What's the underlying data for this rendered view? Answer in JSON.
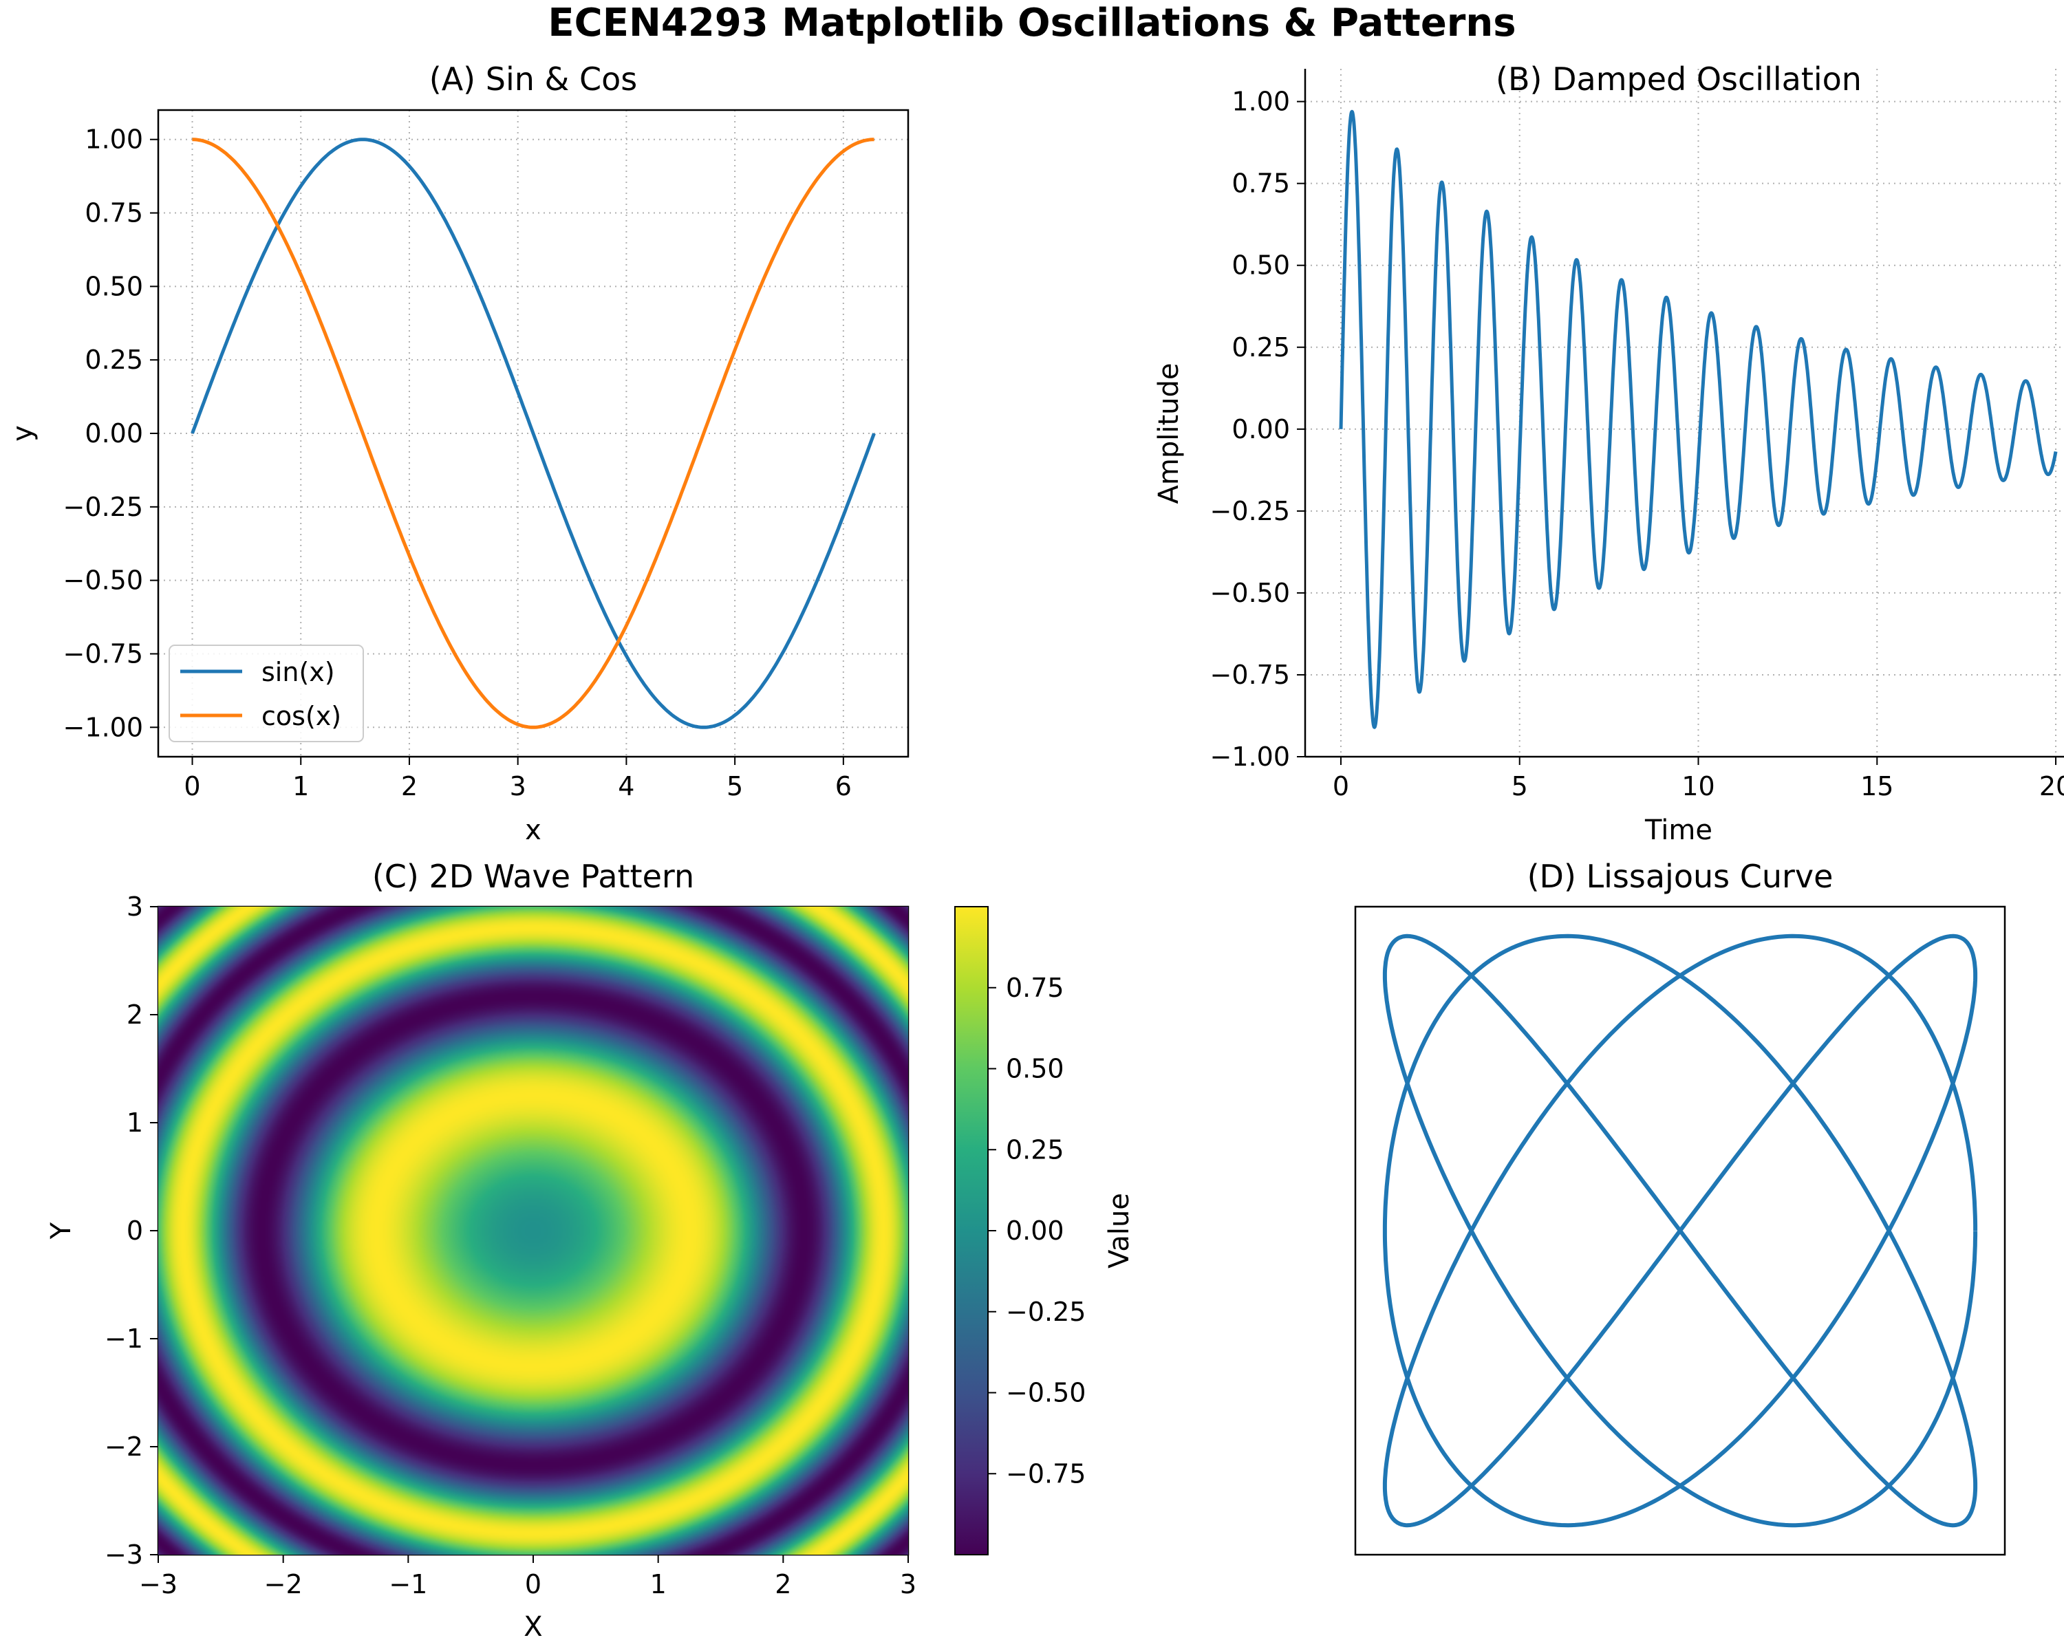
{
  "figure_title": "ECEN4293 Matplotlib Oscillations & Patterns",
  "colors": {
    "sin": "#1f77b4",
    "cos": "#ff7f0e",
    "damped": "#1f77b4",
    "lissajous": "#1f77b4",
    "grid": "#b0b0b0",
    "colormap": "viridis"
  },
  "chart_data": [
    {
      "id": "A",
      "type": "line",
      "title": "(A) Sin & Cos",
      "xlabel": "x",
      "ylabel": "y",
      "xlim": [
        -0.314,
        6.597
      ],
      "ylim": [
        -1.1,
        1.1
      ],
      "xticks": [
        0,
        1,
        2,
        3,
        4,
        5,
        6
      ],
      "xtick_labels": [
        "0",
        "1",
        "2",
        "3",
        "4",
        "5",
        "6"
      ],
      "yticks": [
        1.0,
        0.75,
        0.5,
        0.25,
        0.0,
        -0.25,
        -0.5,
        -0.75,
        -1.0
      ],
      "ytick_labels": [
        "1.00",
        "0.75",
        "0.50",
        "0.25",
        "0.00",
        "−0.25",
        "−0.50",
        "−0.75",
        "−1.00"
      ],
      "grid": true,
      "grid_style": "dotted",
      "legend": "lower-left",
      "series": [
        {
          "name": "sin(x)",
          "x": [
            0,
            0.524,
            1.047,
            1.571,
            2.094,
            2.618,
            3.142,
            3.665,
            4.189,
            4.712,
            5.236,
            5.76,
            6.283
          ],
          "y": [
            0,
            0.5,
            0.866,
            1.0,
            0.866,
            0.5,
            0,
            -0.5,
            -0.866,
            -1.0,
            -0.866,
            -0.5,
            0
          ]
        },
        {
          "name": "cos(x)",
          "x": [
            0,
            0.524,
            1.047,
            1.571,
            2.094,
            2.618,
            3.142,
            3.665,
            4.189,
            4.712,
            5.236,
            5.76,
            6.283
          ],
          "y": [
            1.0,
            0.866,
            0.5,
            0,
            -0.5,
            -0.866,
            -1.0,
            -0.866,
            -0.5,
            0,
            0.5,
            0.866,
            1.0
          ]
        }
      ]
    },
    {
      "id": "B",
      "type": "line",
      "title": "(B) Damped Oscillation",
      "xlabel": "Time",
      "ylabel": "Amplitude",
      "xlim": [
        -1,
        21
      ],
      "ylim": [
        -1.0,
        1.1
      ],
      "xticks": [
        0,
        5,
        10,
        15,
        20
      ],
      "xtick_labels": [
        "0",
        "5",
        "10",
        "15",
        "20"
      ],
      "yticks": [
        1.0,
        0.75,
        0.5,
        0.25,
        0.0,
        -0.25,
        -0.5,
        -0.75,
        -1.0
      ],
      "ytick_labels": [
        "1.00",
        "0.75",
        "0.50",
        "0.25",
        "0.00",
        "−0.25",
        "−0.50",
        "−0.75",
        "−1.00"
      ],
      "grid": true,
      "grid_style": "dotted",
      "function": "y = exp(-0.1 t) * sin(5 t)",
      "x_range": [
        0,
        20
      ],
      "peaks": [
        {
          "t": 0.31,
          "y": 0.97
        },
        {
          "t": 1.57,
          "y": 0.85
        },
        {
          "t": 2.83,
          "y": 0.75
        },
        {
          "t": 4.08,
          "y": 0.66
        },
        {
          "t": 5.34,
          "y": 0.59
        },
        {
          "t": 6.6,
          "y": 0.52
        },
        {
          "t": 7.85,
          "y": 0.46
        },
        {
          "t": 9.11,
          "y": 0.4
        },
        {
          "t": 10.37,
          "y": 0.35
        },
        {
          "t": 11.62,
          "y": 0.31
        },
        {
          "t": 12.88,
          "y": 0.28
        },
        {
          "t": 14.14,
          "y": 0.24
        },
        {
          "t": 15.39,
          "y": 0.21
        },
        {
          "t": 16.65,
          "y": 0.19
        },
        {
          "t": 17.91,
          "y": 0.17
        },
        {
          "t": 19.16,
          "y": 0.15
        }
      ]
    },
    {
      "id": "C",
      "type": "heatmap",
      "title": "(C) 2D Wave Pattern",
      "xlabel": "X",
      "ylabel": "Y",
      "xlim": [
        -3,
        3
      ],
      "ylim": [
        -3,
        3
      ],
      "xticks": [
        -3,
        -2,
        -1,
        0,
        1,
        2,
        3
      ],
      "xtick_labels": [
        "−3",
        "−2",
        "−1",
        "0",
        "1",
        "2",
        "3"
      ],
      "yticks": [
        3,
        2,
        1,
        0,
        -1,
        -2,
        -3
      ],
      "ytick_labels": [
        "3",
        "2",
        "1",
        "0",
        "−1",
        "−2",
        "−3"
      ],
      "function": "z = sin(x^2 + y^2)",
      "colormap": "viridis",
      "colorbar": {
        "label": "Value",
        "range": [
          -1.0,
          1.0
        ],
        "ticks": [
          0.75,
          0.5,
          0.25,
          0.0,
          -0.25,
          -0.5,
          -0.75
        ],
        "tick_labels": [
          "0.75",
          "0.50",
          "0.25",
          "0.00",
          "−0.25",
          "−0.50",
          "−0.75"
        ]
      }
    },
    {
      "id": "D",
      "type": "line",
      "title": "(D) Lissajous Curve",
      "axis": "off",
      "function": "x = sin(3 t + pi/2), y = sin(4 t)",
      "t_range": [
        0,
        6.283
      ],
      "xlim": [
        -1.1,
        1.1
      ],
      "ylim": [
        -1.1,
        1.1
      ]
    }
  ]
}
